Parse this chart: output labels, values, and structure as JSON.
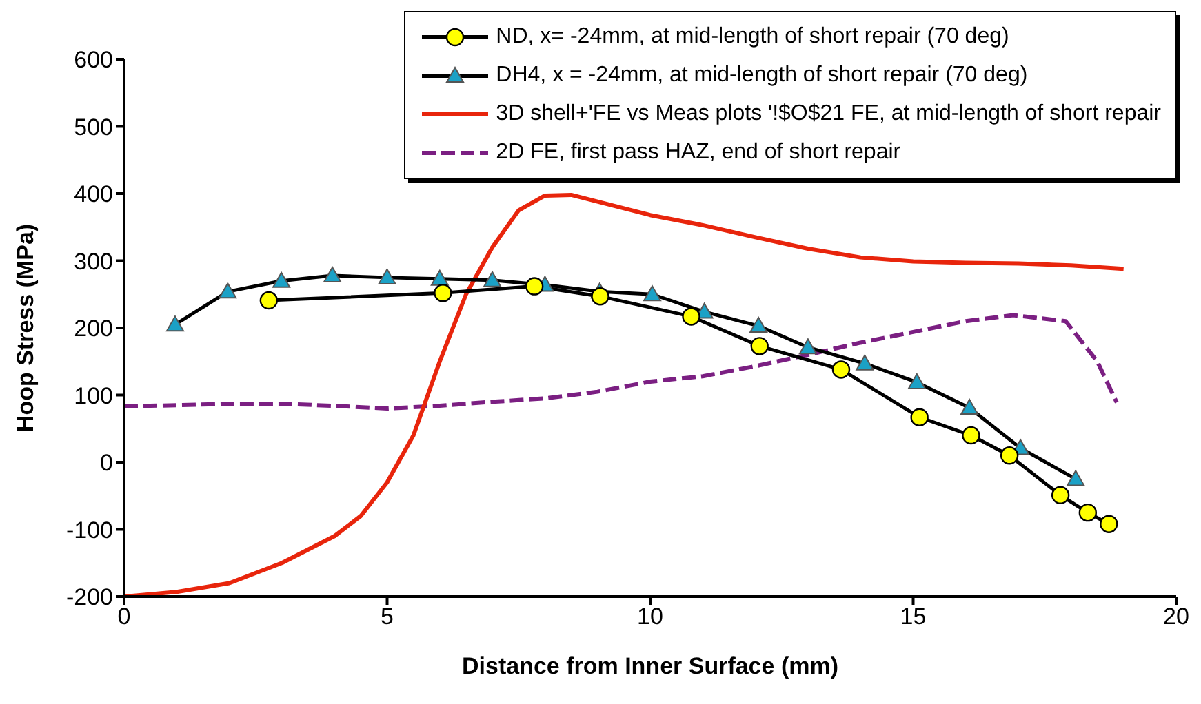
{
  "chart_data": {
    "type": "line",
    "xlabel": "Distance from Inner Surface (mm)",
    "ylabel": "Hoop Stress (MPa)",
    "xlim": [
      0,
      20
    ],
    "xticks": [
      0,
      5,
      10,
      15,
      20
    ],
    "ylim": [
      -200,
      600
    ],
    "yticks": [
      -200,
      -100,
      0,
      100,
      200,
      300,
      400,
      500,
      600
    ],
    "grid": false,
    "legend": "top right",
    "series": [
      {
        "name": "ND, x= -24mm, at mid-length of short repair (70 deg)",
        "color": "#000000",
        "marker": "circle",
        "colors": [
          "#ffff00",
          "#ffff00",
          "#ffff00",
          "#ffff00",
          "#ffff00",
          "#ffff00",
          "#ffff00",
          "#ffff00",
          "#ffff00",
          "#ffff00",
          "#ffff00",
          "#ffff00",
          "#ffff00"
        ],
        "x": [
          2.75,
          6.06,
          7.8,
          9.05,
          10.78,
          12.08,
          13.63,
          15.12,
          16.1,
          16.83,
          17.8,
          18.32,
          18.72
        ],
        "values": [
          241,
          252,
          262,
          247,
          217,
          173,
          138,
          67,
          40,
          10,
          -49,
          -75,
          -92
        ]
      },
      {
        "name": "DH4, x = -24mm, at mid-length of short repair (70 deg)",
        "color": "#000000",
        "marker": "triangle",
        "colors": [
          "#1ba1c6",
          "#1ba1c6",
          "#1ba1c6",
          "#1ba1c6",
          "#1ba1c6",
          "#1ba1c6",
          "#1ba1c6",
          "#1ba1c6",
          "#1ba1c6",
          "#1ba1c6",
          "#1ba1c6",
          "#1ba1c6",
          "#1ba1c6",
          "#1ba1c6",
          "#1ba1c6",
          "#1ba1c6",
          "#1ba1c6",
          "#1ba1c6"
        ],
        "x": [
          0.97,
          1.97,
          2.99,
          3.96,
          5.0,
          6.0,
          7.0,
          8.0,
          9.04,
          10.04,
          11.03,
          12.06,
          13.0,
          14.08,
          15.07,
          16.07,
          17.04,
          18.09
        ],
        "values": [
          205,
          254,
          270,
          278,
          275,
          273,
          271,
          264,
          254,
          250,
          224,
          203,
          171,
          147,
          119,
          81,
          21,
          -25
        ]
      },
      {
        "name": "3D shell+'FE vs Meas plots '!$O$21 FE, at mid-length of short repair",
        "color": "#e8250c",
        "marker": "none",
        "line_style": "solid",
        "x": [
          0,
          1,
          2,
          3,
          4,
          4.5,
          5,
          5.5,
          6,
          6.5,
          7,
          7.5,
          8,
          8.5,
          9,
          10,
          11,
          12,
          13,
          14,
          15,
          16,
          17,
          18,
          19
        ],
        "values": [
          -200,
          -193,
          -180,
          -150,
          -110,
          -80,
          -30,
          40,
          150,
          250,
          320,
          375,
          397,
          398,
          388,
          368,
          353,
          335,
          318,
          305,
          299,
          297,
          296,
          293,
          288
        ]
      },
      {
        "name": "2D FE, first pass HAZ, end of short repair",
        "color": "#7b1f82",
        "marker": "none",
        "line_style": "dashed",
        "x": [
          0,
          1,
          2,
          3,
          4,
          5,
          6,
          7,
          8,
          9,
          10,
          11,
          12,
          13,
          14,
          15,
          16,
          16.9,
          17.9,
          18.5,
          18.87
        ],
        "values": [
          83,
          85,
          87,
          87,
          84,
          80,
          84,
          90,
          95,
          105,
          120,
          128,
          143,
          160,
          178,
          194,
          210,
          219,
          210,
          150,
          89
        ]
      }
    ]
  }
}
